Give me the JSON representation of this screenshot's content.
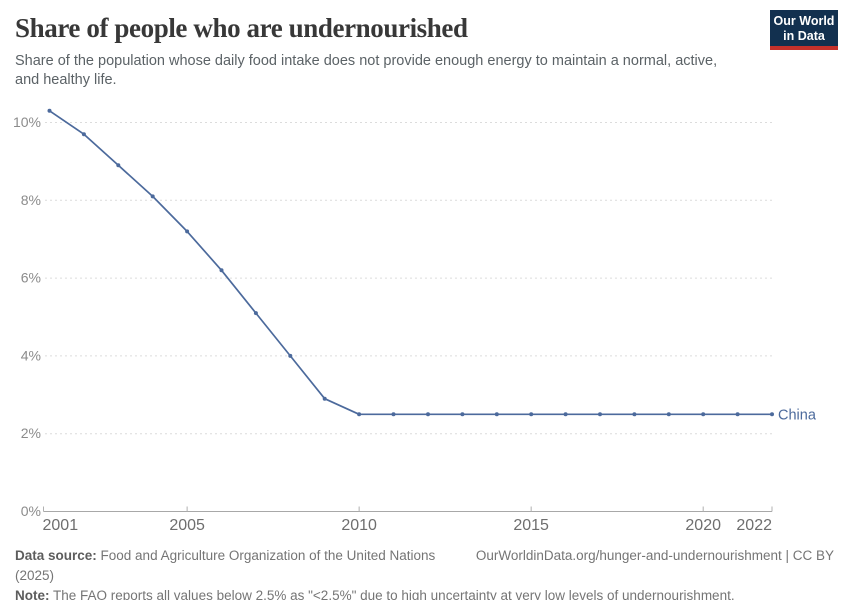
{
  "header": {
    "title": "Share of people who are undernourished",
    "subtitle": "Share of the population whose daily food intake does not provide enough energy to maintain a normal, active, and healthy life.",
    "logo": {
      "line1": "Our World",
      "line2": "in Data",
      "bg_color": "#12304F",
      "accent_color": "#C5312B"
    }
  },
  "chart_data": {
    "type": "line",
    "title": "Share of people who are undernourished",
    "x": [
      2001,
      2002,
      2003,
      2004,
      2005,
      2006,
      2007,
      2008,
      2009,
      2010,
      2011,
      2012,
      2013,
      2014,
      2015,
      2016,
      2017,
      2018,
      2019,
      2020,
      2021,
      2022
    ],
    "series": [
      {
        "name": "China",
        "color": "#4C6A9C",
        "values": [
          10.3,
          9.7,
          8.9,
          8.1,
          7.2,
          6.2,
          5.1,
          4.0,
          2.9,
          2.5,
          2.5,
          2.5,
          2.5,
          2.5,
          2.5,
          2.5,
          2.5,
          2.5,
          2.5,
          2.5,
          2.5,
          2.5
        ]
      }
    ],
    "xlabel": "",
    "ylabel": "",
    "xlim": [
      2001,
      2022
    ],
    "ylim": [
      0,
      10.55
    ],
    "xticks": [
      2001,
      2005,
      2010,
      2015,
      2020,
      2022
    ],
    "yticks": [
      0,
      2,
      4,
      6,
      8,
      10
    ],
    "ytick_suffix": "%",
    "grid": "horizontal-dashed",
    "legend_position": "end-of-line",
    "end_label": "China",
    "colors": {
      "gridline": "#dcdcdc",
      "axis": "#a8a8a8",
      "tick": "#b0b0b0",
      "y_label": "#8b8b8b",
      "x_label": "#6e6e6e"
    }
  },
  "footer": {
    "source_label": "Data source:",
    "source_text": " Food and Agriculture Organization of the United Nations (2025)",
    "attribution": "OurWorldinData.org/hunger-and-undernourishment | CC BY",
    "note_label": "Note:",
    "note_text": " The FAO reports all values below 2.5% as \"<2.5%\" due to high uncertainty at very low levels of undernourishment."
  }
}
